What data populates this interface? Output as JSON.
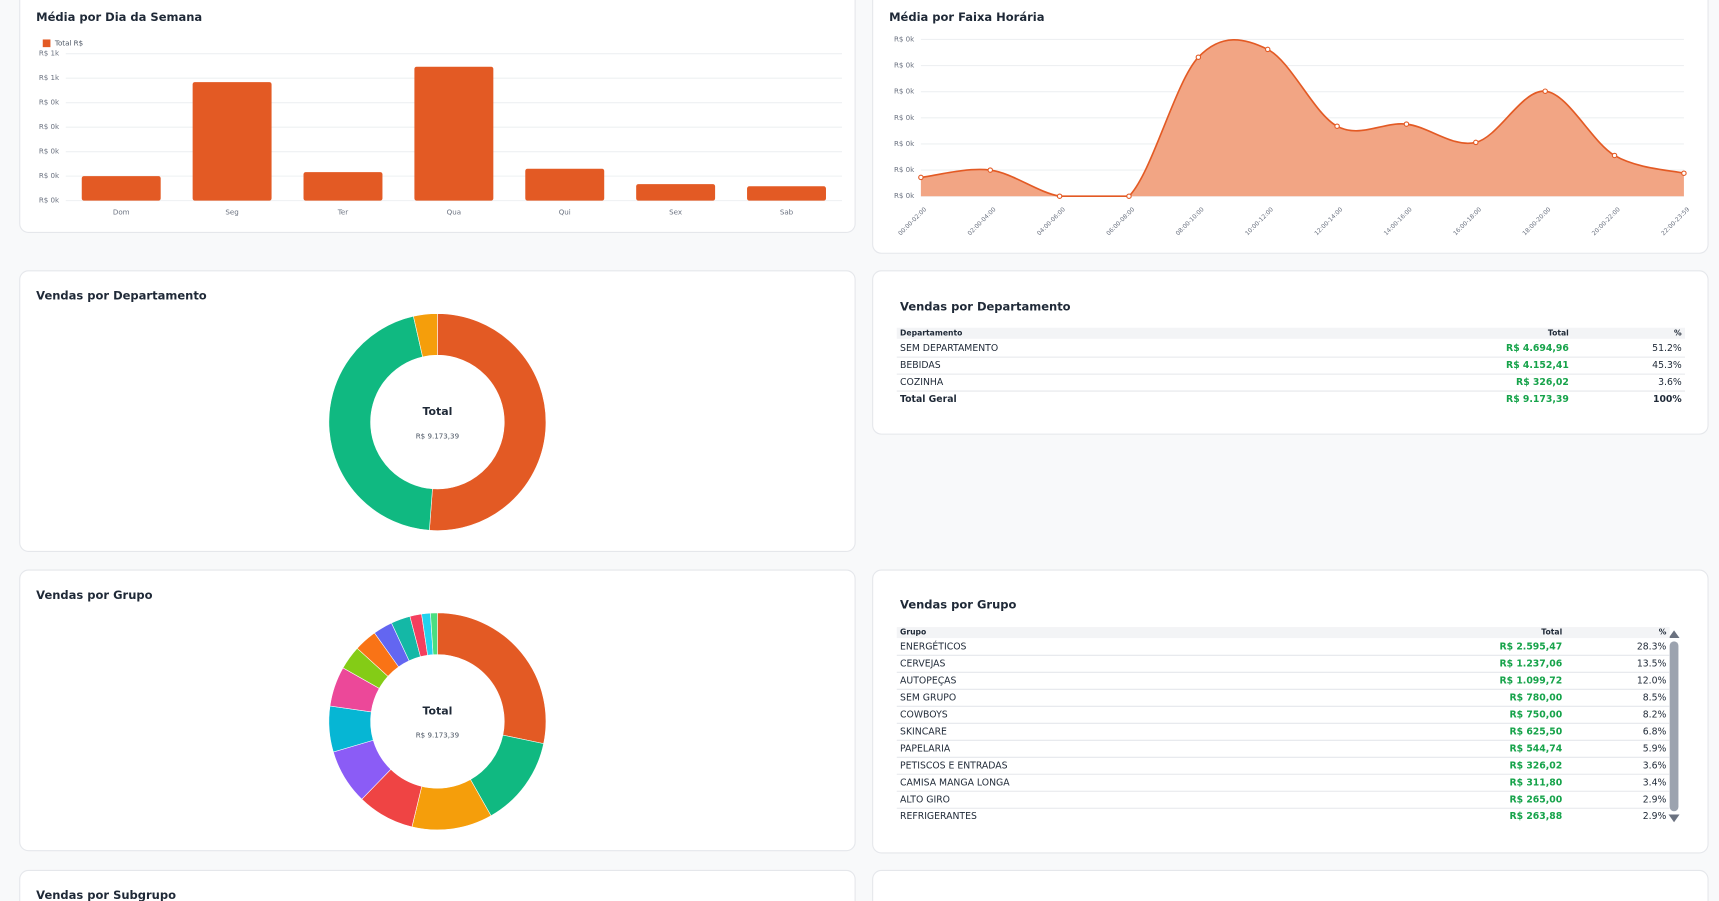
{
  "chart_data": [
    {
      "type": "bar",
      "title": "Média por Dia da Semana",
      "categories": [
        "Dom",
        "Seg",
        "Ter",
        "Qua",
        "Qui",
        "Sex",
        "Sab"
      ],
      "series": [
        {
          "name": "Total R$",
          "color": "#e35a24",
          "values": [
            200,
            968,
            233,
            1094,
            260,
            135,
            117
          ]
        }
      ],
      "ylim": [
        0,
        1200
      ],
      "yticks": [
        {
          "value": 0,
          "label": "R$ 0k"
        },
        {
          "value": 200,
          "label": "R$ 0k"
        },
        {
          "value": 400,
          "label": "R$ 0k"
        },
        {
          "value": 600,
          "label": "R$ 0k"
        },
        {
          "value": 800,
          "label": "R$ 0k"
        },
        {
          "value": 1000,
          "label": "R$ 1k"
        },
        {
          "value": 1200,
          "label": "R$ 1k"
        }
      ],
      "grid": true
    },
    {
      "type": "area",
      "title": "Média por Faixa Horária",
      "categories": [
        "00:00-02:00",
        "02:00-04:00",
        "04:00-06:00",
        "06:00-08:00",
        "08:00-10:00",
        "10:00-12:00",
        "12:00-14:00",
        "14:00-16:00",
        "16:00-18:00",
        "18:00-20:00",
        "20:00-22:00",
        "22:00-23:59"
      ],
      "values": [
        36,
        50,
        0,
        0,
        266,
        281,
        134,
        138,
        103,
        201,
        78,
        44
      ],
      "color": "#e35a24",
      "fill_color": "#f2a584",
      "ylim": [
        0,
        300
      ],
      "yticks": [
        {
          "value": 0,
          "label": "R$ 0k"
        },
        {
          "value": 50,
          "label": "R$ 0k"
        },
        {
          "value": 100,
          "label": "R$ 0k"
        },
        {
          "value": 150,
          "label": "R$ 0k"
        },
        {
          "value": 200,
          "label": "R$ 0k"
        },
        {
          "value": 250,
          "label": "R$ 0k"
        },
        {
          "value": 300,
          "label": "R$ 0k"
        }
      ],
      "grid": true
    },
    {
      "type": "pie",
      "title": "Vendas por Departamento",
      "values": [
        4694.96,
        4152.41,
        326.02
      ],
      "colors": [
        "#e35a24",
        "#10b981",
        "#f59e0b"
      ],
      "center_label": "Total",
      "center_value": "R$ 9.173,39"
    },
    {
      "type": "pie",
      "title": "Vendas por Grupo",
      "values": [
        2595.47,
        1237.06,
        1099.72,
        780,
        750,
        625.5,
        544.74,
        326.02,
        311.8,
        265,
        263.88,
        160,
        120,
        94.2
      ],
      "colors": [
        "#e35a24",
        "#10b981",
        "#f59e0b",
        "#ef4444",
        "#8b5cf6",
        "#06b6d4",
        "#ec4899",
        "#84cc16",
        "#f97316",
        "#6366f1",
        "#14b8a6",
        "#f43f5e",
        "#22d3ee",
        "#4ade80"
      ],
      "center_label": "Total",
      "center_value": "R$ 9.173,39"
    }
  ],
  "tables": [
    {
      "title": "Vendas por Departamento",
      "columns": [
        "Departamento",
        "Total",
        "%"
      ],
      "rows": [
        [
          "SEM DEPARTAMENTO",
          "R$ 4.694,96",
          "51.2%"
        ],
        [
          "BEBIDAS",
          "R$ 4.152,41",
          "45.3%"
        ],
        [
          "COZINHA",
          "R$ 326,02",
          "3.6%"
        ]
      ],
      "total_row": [
        "Total Geral",
        "R$ 9.173,39",
        "100%"
      ]
    },
    {
      "title": "Vendas por Grupo",
      "columns": [
        "Grupo",
        "Total",
        "%"
      ],
      "rows": [
        [
          "ENERGÉTICOS",
          "R$ 2.595,47",
          "28.3%"
        ],
        [
          "CERVEJAS",
          "R$ 1.237,06",
          "13.5%"
        ],
        [
          "AUTOPEÇAS",
          "R$ 1.099,72",
          "12.0%"
        ],
        [
          "SEM GRUPO",
          "R$ 780,00",
          "8.5%"
        ],
        [
          "COWBOYS",
          "R$ 750,00",
          "8.2%"
        ],
        [
          "SKINCARE",
          "R$ 625,50",
          "6.8%"
        ],
        [
          "PAPELARIA",
          "R$ 544,74",
          "5.9%"
        ],
        [
          "PETISCOS E ENTRADAS",
          "R$ 326,02",
          "3.6%"
        ],
        [
          "CAMISA MANGA LONGA",
          "R$ 311,80",
          "3.4%"
        ],
        [
          "ALTO GIRO",
          "R$ 265,00",
          "2.9%"
        ],
        [
          "REFRIGERANTES",
          "R$ 263,88",
          "2.9%"
        ]
      ]
    }
  ],
  "panels": [
    {
      "title": "Vendas por Subgrupo"
    }
  ]
}
